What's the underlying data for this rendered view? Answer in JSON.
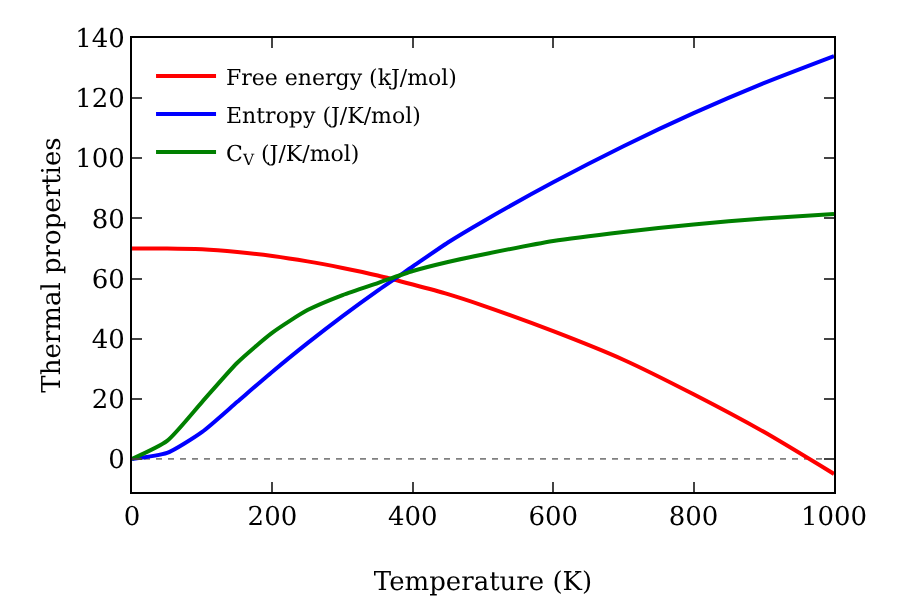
{
  "chart_data": {
    "type": "line",
    "xlabel": "Temperature (K)",
    "ylabel": "Thermal properties",
    "x": [
      0,
      50,
      100,
      150,
      200,
      250,
      300,
      350,
      400,
      450,
      500,
      600,
      700,
      800,
      900,
      1000
    ],
    "series": [
      {
        "name": "Free energy (kJ/mol)",
        "color": "#ff0000",
        "values": [
          70,
          70,
          69.7,
          68.8,
          67.5,
          65.7,
          63.5,
          61,
          58,
          54.8,
          51,
          42.5,
          33,
          21.5,
          9,
          -5
        ]
      },
      {
        "name": "Entropy (J/K/mol)",
        "color": "#0000ff",
        "values": [
          0,
          2,
          9,
          19,
          29,
          38.5,
          47.5,
          56,
          64,
          72,
          79,
          92,
          104,
          115,
          125,
          134
        ]
      },
      {
        "name": "C$_{V}$ (J/K/mol)",
        "color": "#008000",
        "values": [
          0,
          6,
          19,
          32,
          42,
          49.5,
          54.5,
          58.5,
          62.5,
          65.5,
          68,
          72.5,
          75.5,
          78,
          80,
          81.5
        ]
      }
    ],
    "xlim": [
      0,
      1000
    ],
    "xticks": [
      0,
      200,
      400,
      600,
      800,
      1000
    ],
    "ylim": [
      -11,
      140
    ],
    "yticks": [
      0,
      20,
      40,
      60,
      80,
      100,
      120,
      140
    ],
    "grid": false,
    "legend": "top left",
    "marker": "none",
    "line_style": "solid",
    "ref_lines": [
      {
        "axis": "y",
        "value": 0,
        "color": "#808080",
        "line_style": "dotted"
      }
    ]
  }
}
